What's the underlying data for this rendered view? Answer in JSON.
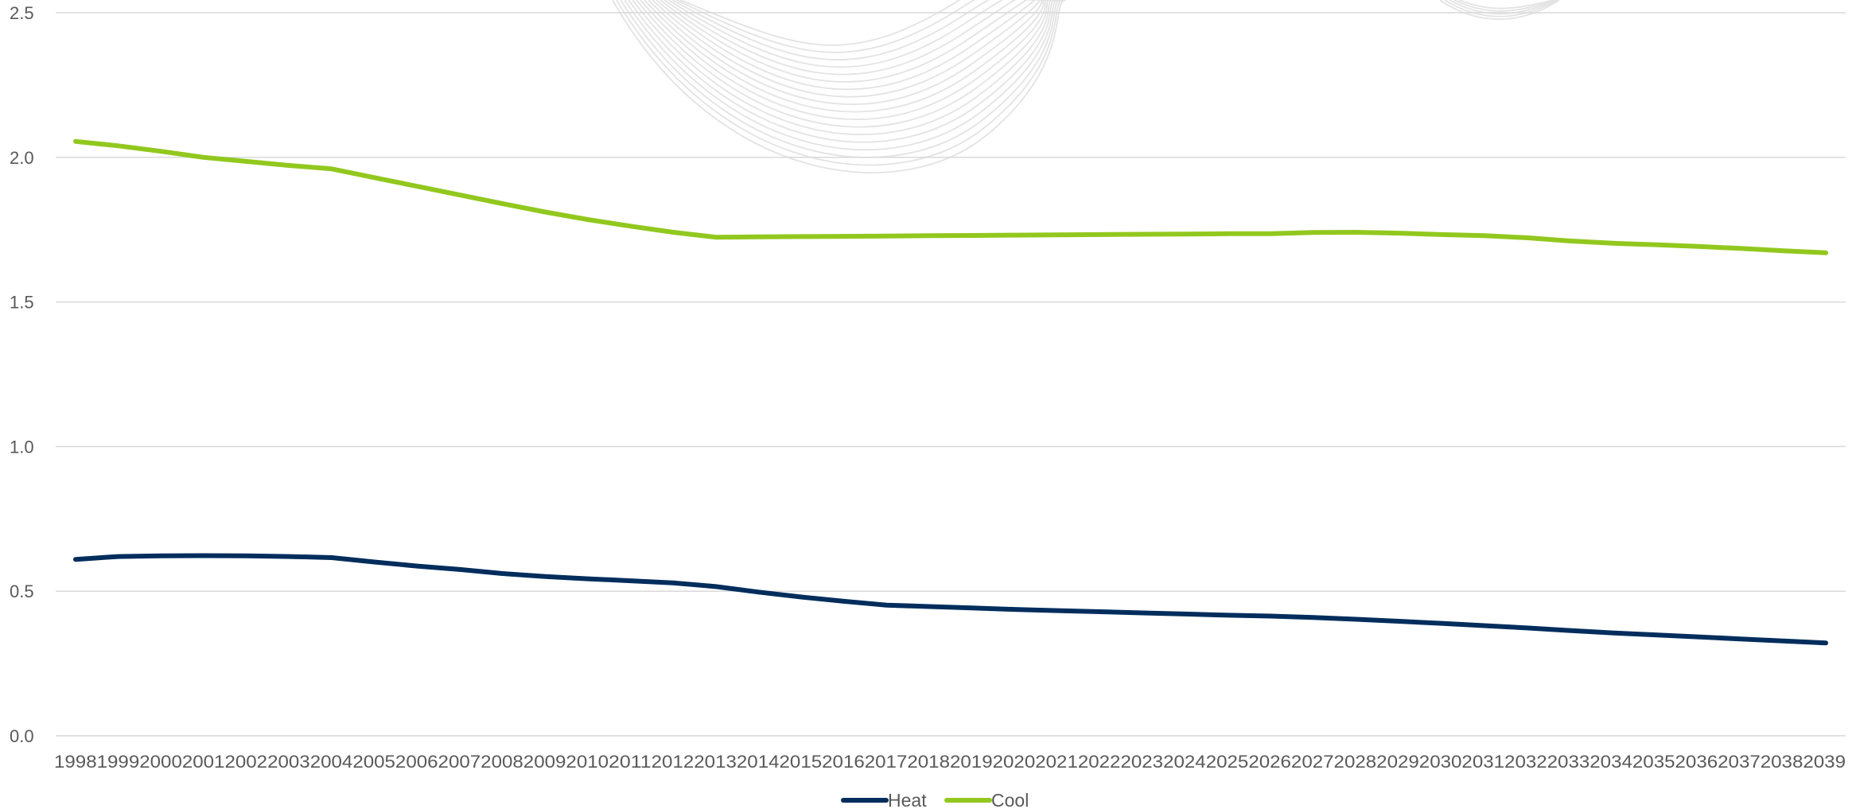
{
  "chart_data": {
    "type": "line",
    "title": "",
    "xlabel": "",
    "ylabel": "",
    "categories": [
      "1998",
      "1999",
      "2000",
      "2001",
      "2002",
      "2003",
      "2004",
      "2005",
      "2006",
      "2007",
      "2008",
      "2009",
      "2010",
      "2011",
      "2012",
      "2013",
      "2014",
      "2015",
      "2016",
      "2017",
      "2018",
      "2019",
      "2020",
      "2021",
      "2022",
      "2023",
      "2024",
      "2025",
      "2026",
      "2027",
      "2028",
      "2029",
      "2030",
      "2031",
      "2032",
      "2033",
      "2034",
      "2035",
      "2036",
      "2037",
      "2038",
      "2039"
    ],
    "ylim": [
      0,
      2.5
    ],
    "yticks": [
      "0.0",
      "0.5",
      "1.0",
      "1.5",
      "2.0",
      "2.5"
    ],
    "grid": true,
    "legend_position": "bottom-center",
    "series": [
      {
        "name": "Heat",
        "color": "#002d5c",
        "values": [
          0.61,
          0.62,
          0.622,
          0.623,
          0.622,
          0.62,
          0.616,
          0.601,
          0.587,
          0.575,
          0.561,
          0.551,
          0.543,
          0.536,
          0.529,
          0.516,
          0.497,
          0.48,
          0.465,
          0.452,
          0.447,
          0.442,
          0.437,
          0.433,
          0.429,
          0.425,
          0.421,
          0.417,
          0.414,
          0.409,
          0.403,
          0.396,
          0.389,
          0.381,
          0.373,
          0.364,
          0.356,
          0.349,
          0.342,
          0.335,
          0.328,
          0.321
        ]
      },
      {
        "name": "Cool",
        "color": "#92c81e",
        "values": [
          2.055,
          2.04,
          2.021,
          2.0,
          1.986,
          1.972,
          1.96,
          1.93,
          1.9,
          1.87,
          1.84,
          1.811,
          1.785,
          1.762,
          1.741,
          1.724,
          1.725,
          1.726,
          1.727,
          1.728,
          1.729,
          1.73,
          1.731,
          1.732,
          1.733,
          1.734,
          1.735,
          1.736,
          1.736,
          1.74,
          1.741,
          1.738,
          1.733,
          1.729,
          1.722,
          1.711,
          1.703,
          1.698,
          1.692,
          1.685,
          1.677,
          1.67
        ]
      }
    ]
  }
}
